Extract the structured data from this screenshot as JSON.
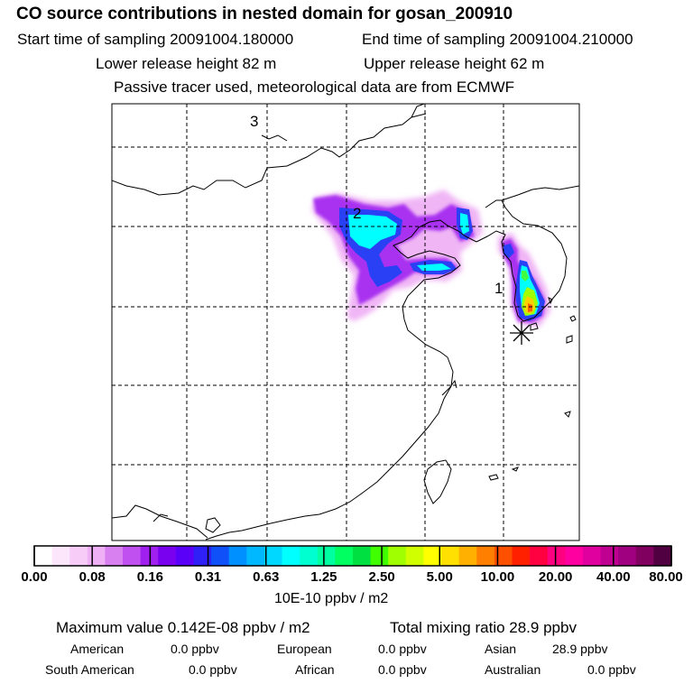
{
  "header": {
    "title": "CO  source contributions in nested domain for gosan_200910",
    "start_time": "Start time of sampling 20091004.180000",
    "end_time": "End time of sampling 20091004.210000",
    "lower_release": "Lower release height   82 m",
    "upper_release": "Upper release height   62 m",
    "tracer_note": "Passive tracer used, meteorological data are from ECMWF"
  },
  "map": {
    "labels": {
      "marker_1": "1",
      "marker_2": "2",
      "marker_3": "3"
    }
  },
  "colorbar": {
    "colors": [
      "#ffffff",
      "#fbe6fb",
      "#f7ccf7",
      "#f0b0f5",
      "#d880f0",
      "#c050f0",
      "#a020f0",
      "#7a00f0",
      "#5a00f8",
      "#3020f8",
      "#1050f8",
      "#0090ff",
      "#00b8ff",
      "#00d8ff",
      "#00ffff",
      "#00ffd0",
      "#00ffa0",
      "#00ff60",
      "#00e040",
      "#40ff00",
      "#a0ff00",
      "#d0ff00",
      "#ffff00",
      "#ffe000",
      "#ffb000",
      "#ff8000",
      "#ff5000",
      "#ff2000",
      "#ff0040",
      "#ff0080",
      "#ff00a0",
      "#e000a0",
      "#c00090",
      "#a00080",
      "#800060",
      "#500040"
    ],
    "ticks": [
      "0.00",
      "0.08",
      "0.16",
      "0.31",
      "0.63",
      "1.25",
      "2.50",
      "5.00",
      "10.00",
      "20.00",
      "40.00",
      "80.00"
    ],
    "units": "10E-10 ppbv / m2"
  },
  "stats": {
    "maximum": "Maximum value  0.142E-08 ppbv / m2",
    "total": "Total mixing ratio       28.9 ppbv",
    "american_label": "American",
    "american_value": "0.0 ppbv",
    "european_label": "European",
    "european_value": "0.0 ppbv",
    "asian_label": "Asian",
    "asian_value": "28.9 ppbv",
    "south_american_label": "South American",
    "south_american_value": "0.0 ppbv",
    "african_label": "African",
    "african_value": "0.0 ppbv",
    "australian_label": "Australian",
    "australian_value": "0.0 ppbv"
  }
}
